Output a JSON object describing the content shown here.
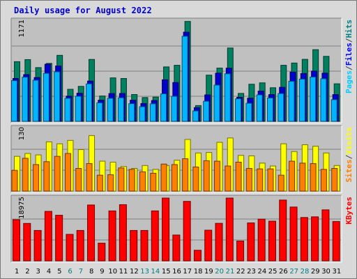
{
  "chart_data": {
    "title": "Daily usage for August 2022",
    "type": "bar",
    "categories": [
      "1",
      "2",
      "3",
      "4",
      "5",
      "6",
      "7",
      "8",
      "9",
      "10",
      "11",
      "12",
      "13",
      "14",
      "15",
      "16",
      "17",
      "18",
      "19",
      "20",
      "21",
      "22",
      "23",
      "24",
      "25",
      "26",
      "27",
      "28",
      "29",
      "30",
      "31"
    ],
    "weekend_days": [
      "6",
      "7",
      "13",
      "14",
      "20",
      "21",
      "27",
      "28"
    ],
    "panels": [
      {
        "id": "top",
        "ymax_label": "1171",
        "ylim": [
          0,
          1171
        ],
        "legend": [
          "Pages",
          "/",
          "Files",
          "/",
          "Hits"
        ],
        "legend_colors": [
          "#00ccff",
          "#404040",
          "#0000ff",
          "#404040",
          "#008080"
        ],
        "series": [
          {
            "name": "Hits",
            "color": "#008060",
            "values": [
              696,
              720,
              627,
              676,
              770,
              374,
              408,
              722,
              296,
              507,
              500,
              313,
              278,
              283,
              635,
              654,
              1165,
              184,
              539,
              621,
              855,
              326,
              433,
              449,
              392,
              654,
              680,
              723,
              836,
              758,
              438
            ]
          },
          {
            "name": "Files",
            "color": "#0000cc",
            "values": [
              500,
              545,
              511,
              666,
              646,
              294,
              328,
              470,
              247,
              324,
              325,
              247,
              208,
              243,
              485,
              453,
              1040,
              160,
              309,
              562,
              621,
              281,
              270,
              353,
              312,
              397,
              575,
              558,
              586,
              562,
              312
            ]
          },
          {
            "name": "Pages",
            "color": "#00b4ff",
            "values": [
              475,
              515,
              480,
              560,
              578,
              269,
              293,
              437,
              216,
              269,
              275,
              206,
              171,
              205,
              321,
              292,
              992,
              122,
              235,
              423,
              555,
              263,
              211,
              309,
              273,
              324,
              467,
              493,
              517,
              497,
              253
            ]
          }
        ]
      },
      {
        "id": "middle",
        "ymax_label": "130",
        "ylim": [
          0,
          130
        ],
        "legend": [
          "Sites",
          "/",
          "Visits"
        ],
        "legend_colors": [
          "#ff8000",
          "#404040",
          "#ffff00"
        ],
        "series": [
          {
            "name": "Visits",
            "color": "#ffff00",
            "values": [
              72,
              78,
              75,
              102,
              98,
              105,
              86,
              115,
              62,
              60,
              51,
              47,
              53,
              45,
              53,
              64,
              107,
              79,
              80,
              101,
              110,
              74,
              73,
              58,
              52,
              98,
              82,
              96,
              93,
              79,
              53
            ]
          },
          {
            "name": "Sites",
            "color": "#ff8000",
            "values": [
              43,
              68,
              55,
              61,
              72,
              78,
              47,
              57,
              33,
              34,
              48,
              45,
              40,
              37,
              56,
              55,
              67,
              50,
              63,
              62,
              52,
              60,
              47,
              46,
              46,
              33,
              62,
              58,
              57,
              45,
              47
            ]
          }
        ]
      },
      {
        "id": "bottom",
        "ymax_label": "18975",
        "ylim": [
          0,
          18975
        ],
        "legend": [
          "KBytes"
        ],
        "legend_colors": [
          "#ff0000"
        ],
        "series": [
          {
            "name": "KBytes",
            "color": "#ff0000",
            "values": [
              12440,
              11320,
              9190,
              14960,
              13790,
              8010,
              9190,
              16890,
              5350,
              15100,
              16990,
              9190,
              9190,
              15100,
              18980,
              7810,
              17980,
              3210,
              9270,
              11350,
              18980,
              5990,
              11470,
              12610,
              12000,
              18380,
              16270,
              13110,
              13310,
              15420,
              11890
            ]
          }
        ]
      }
    ]
  }
}
